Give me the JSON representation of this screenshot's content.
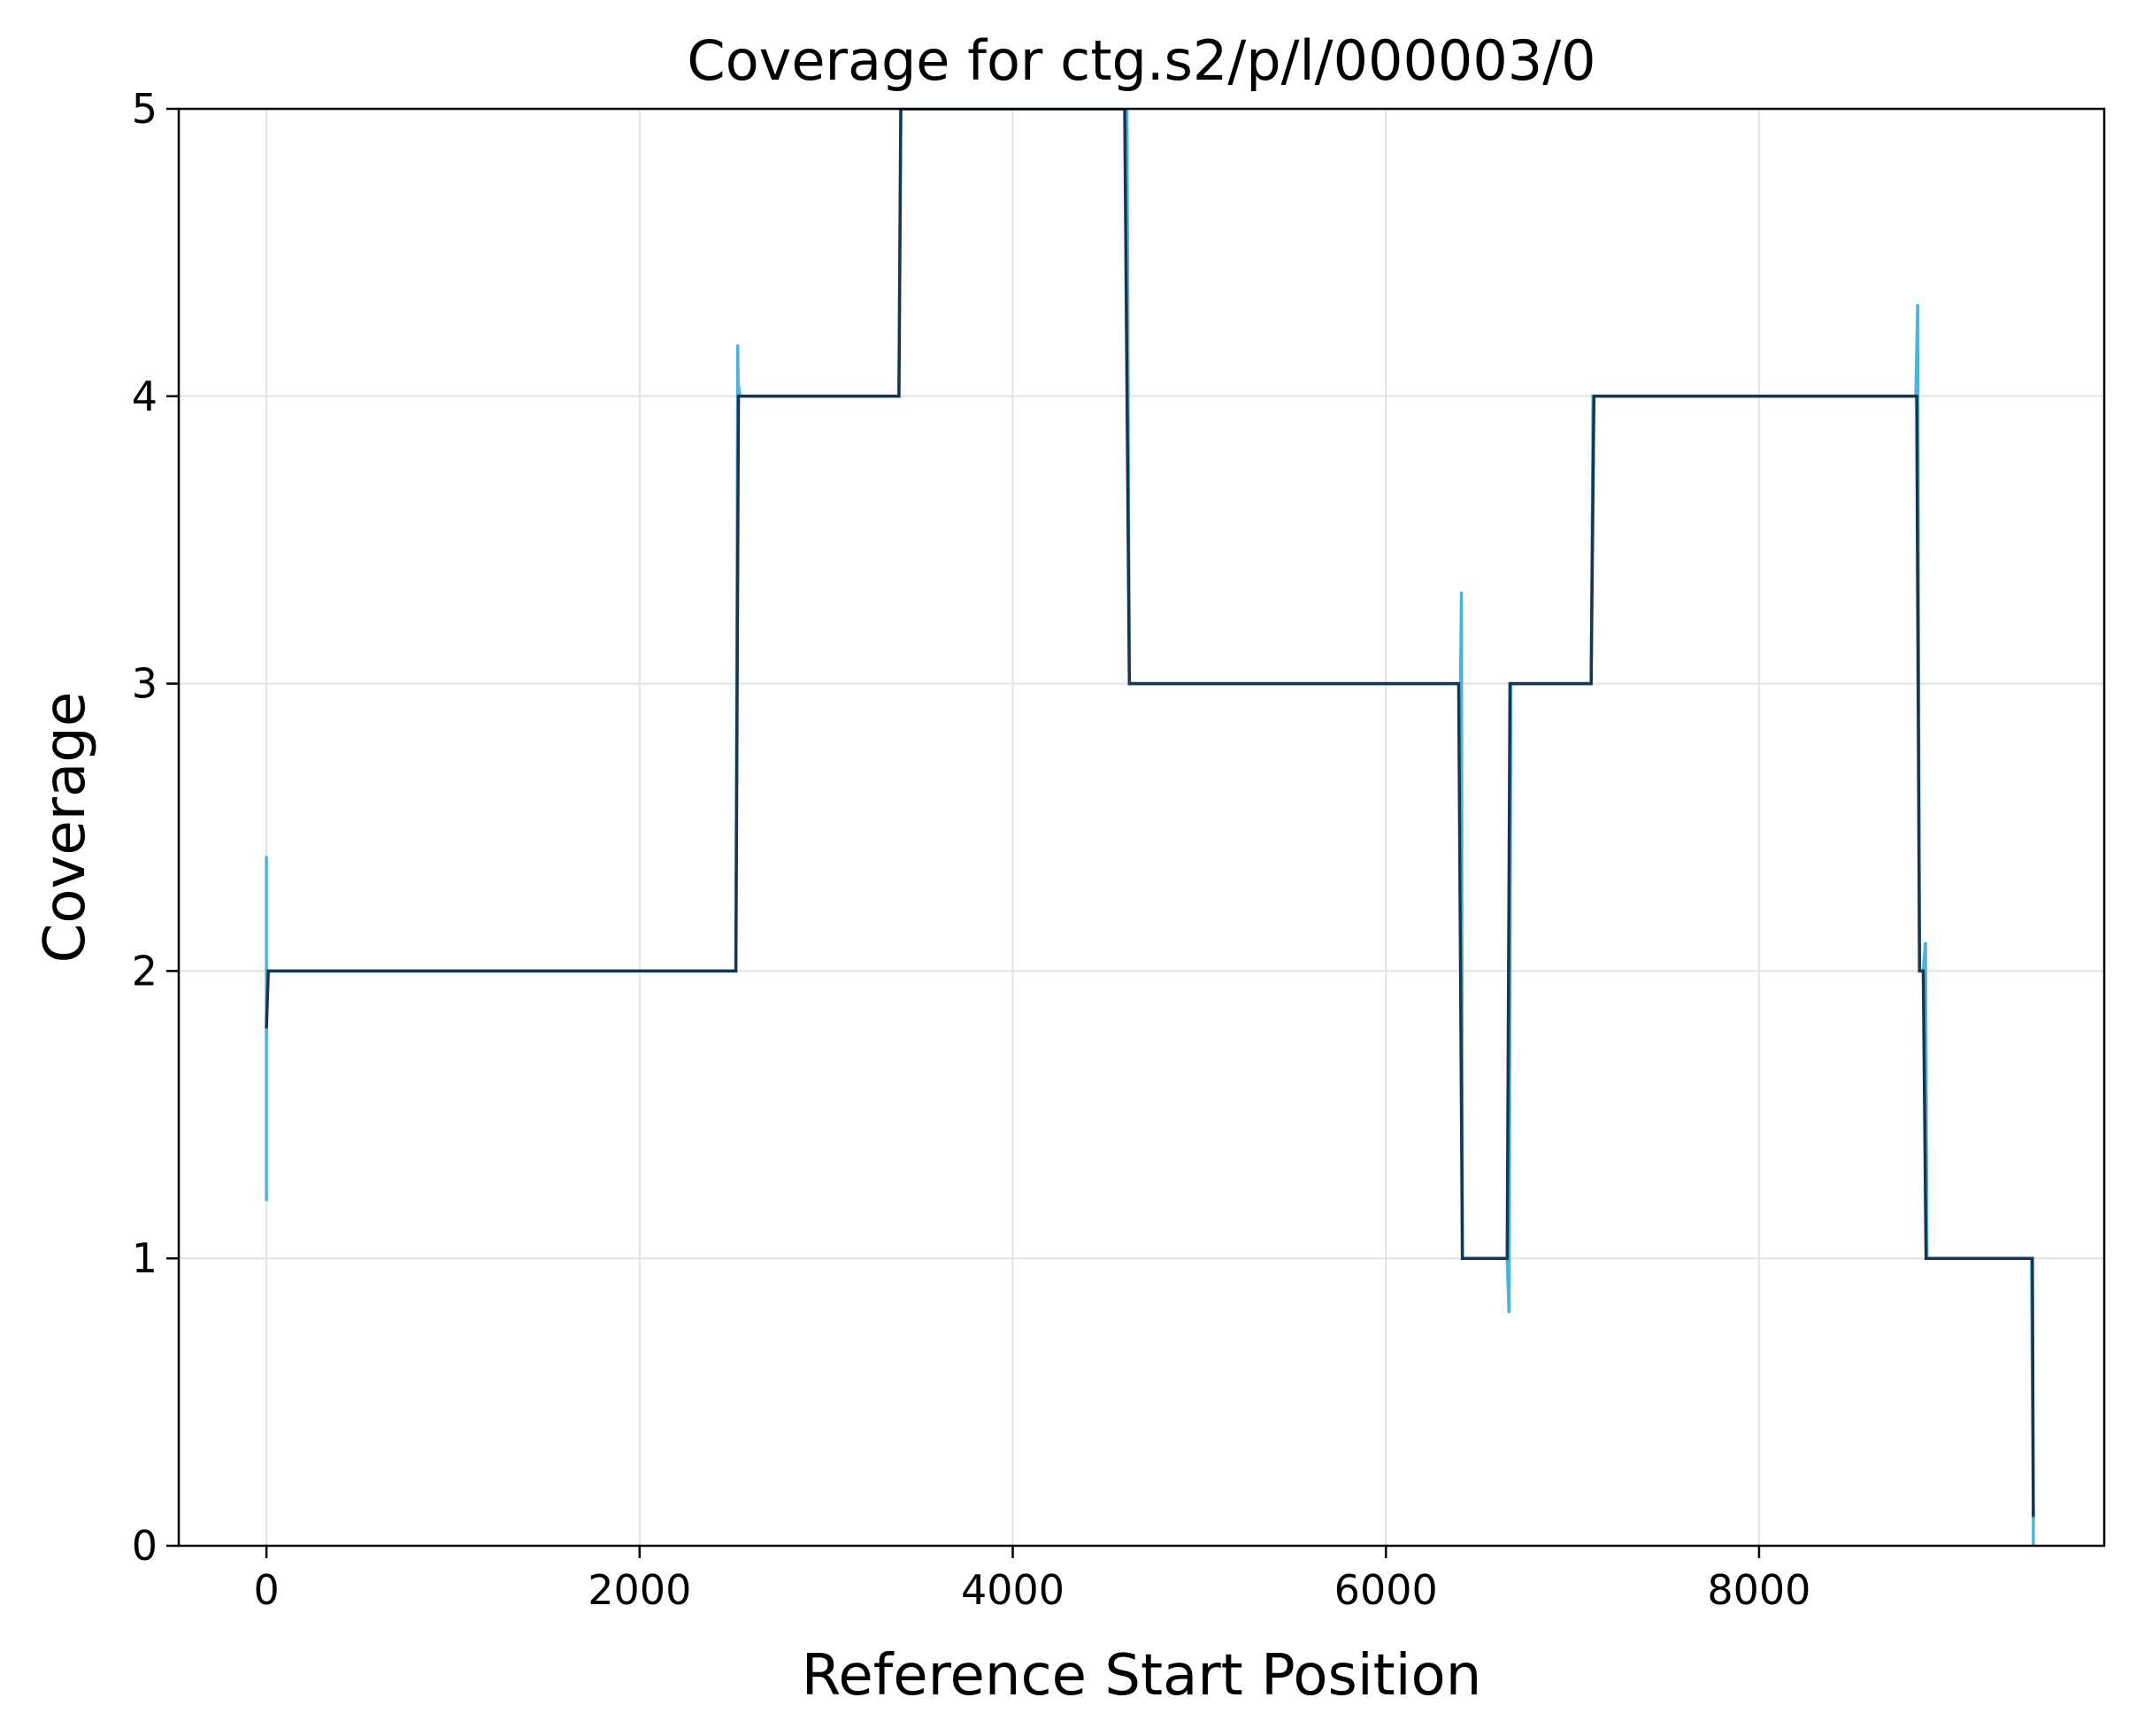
{
  "chart_data": {
    "type": "line",
    "title": "Coverage for ctg.s2/p/l/000003/0",
    "xlabel": "Reference Start Position",
    "ylabel": "Coverage",
    "xlim": [
      -470,
      9850
    ],
    "ylim": [
      0,
      5
    ],
    "xticks": [
      0,
      2000,
      4000,
      6000,
      8000
    ],
    "yticks": [
      0,
      1,
      2,
      3,
      4,
      5
    ],
    "grid": true,
    "legend": "none",
    "series": [
      {
        "color": "#4db3d9",
        "width": 3.5,
        "x": [
          0,
          0,
          0,
          0,
          0,
          10,
          2516,
          2526,
          2528,
          2538,
          3390,
          3400,
          4600,
          4612,
          4625,
          6400,
          6405,
          6410,
          6420,
          6650,
          6660,
          6670,
          7100,
          7110,
          8840,
          8850,
          8860,
          8870,
          8880,
          8892,
          8900,
          8910,
          9460,
          9470,
          9470
        ],
        "y": [
          1.8,
          2.4,
          2.2,
          1.2,
          2.0,
          2.0,
          2.0,
          4.18,
          4.05,
          4.0,
          4.0,
          5.0,
          5.0,
          5.0,
          3.0,
          3.0,
          3.32,
          1.0,
          1.0,
          1.0,
          0.81,
          3.0,
          3.0,
          4.0,
          4.0,
          4.32,
          2.0,
          2.0,
          2.0,
          2.1,
          1.0,
          1.0,
          1.0,
          0.1,
          0.0
        ]
      },
      {
        "color": "#1a3552",
        "width": 3.5,
        "x": [
          0,
          10,
          2516,
          2530,
          3390,
          3400,
          4600,
          4625,
          6390,
          6410,
          6650,
          6665,
          7100,
          7115,
          8845,
          8860,
          8880,
          8895,
          9465,
          9470
        ],
        "y": [
          1.8,
          2.0,
          2.0,
          4.0,
          4.0,
          5.0,
          5.0,
          3.0,
          3.0,
          1.0,
          1.0,
          3.0,
          3.0,
          4.0,
          4.0,
          2.0,
          2.0,
          1.0,
          1.0,
          0.1
        ]
      }
    ]
  }
}
